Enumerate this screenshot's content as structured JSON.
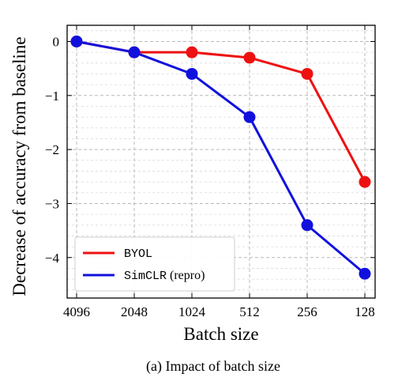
{
  "chart_data": {
    "type": "line",
    "xlabel": "Batch size",
    "ylabel": "Decrease of accuracy from baseline",
    "categories": [
      "4096",
      "2048",
      "1024",
      "512",
      "256",
      "128"
    ],
    "y_ticks": [
      0,
      -1,
      -2,
      -3,
      -4
    ],
    "y_tick_labels": [
      "0",
      "−1",
      "−2",
      "−3",
      "−4"
    ],
    "ylim": [
      -4.75,
      0.3
    ],
    "grid": true,
    "legend_position": "bottom-left",
    "series": [
      {
        "name_mono": "BYOL",
        "name_serif": "",
        "color": "#ee1111",
        "values": [
          0,
          -0.2,
          -0.2,
          -0.3,
          -0.6,
          -2.6
        ]
      },
      {
        "name_mono": "SimCLR",
        "name_serif": "(repro)",
        "color": "#1111dd",
        "values": [
          0,
          -0.2,
          -0.6,
          -1.4,
          -3.4,
          -4.3
        ]
      }
    ]
  },
  "caption": "(a) Impact of batch size"
}
